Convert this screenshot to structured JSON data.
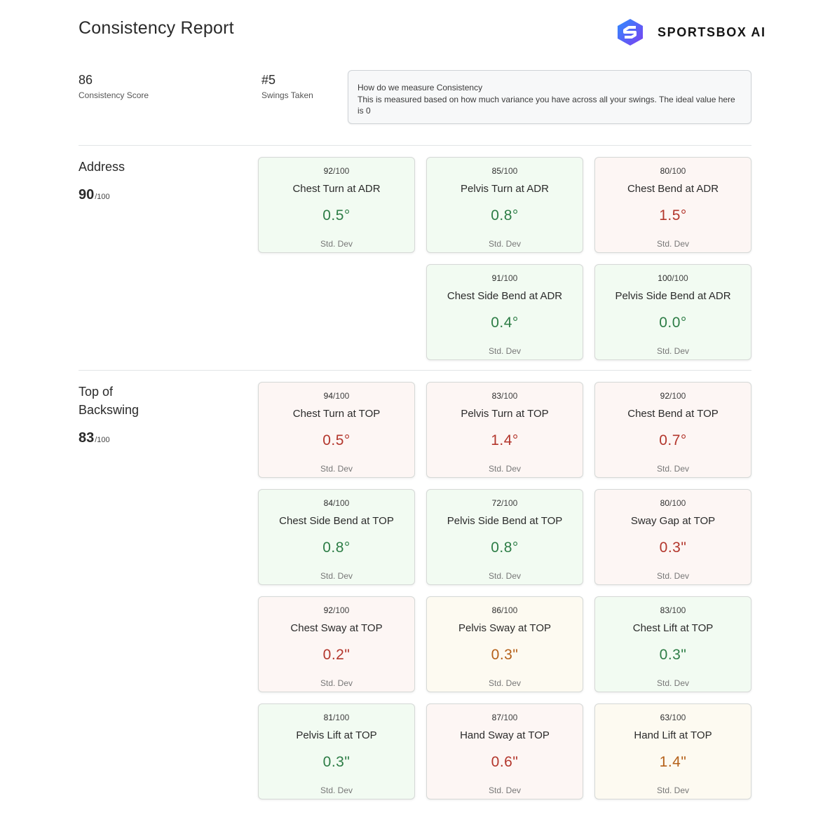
{
  "page_title": "Consistency Report",
  "brand": {
    "name": "SPORTSBOX AI",
    "logo_icon": "sportsbox-logo-icon"
  },
  "stats": {
    "consistency_score": {
      "value": "86",
      "label": "Consistency Score"
    },
    "swings_taken": {
      "value": "#5",
      "label": "Swings Taken"
    }
  },
  "info": {
    "title": "How do we measure Consistency",
    "body": "This is measured based on how much variance you have across all your swings. The ideal value here is 0"
  },
  "colors": {
    "good": "#2d7d46",
    "bad": "#b3362c",
    "warn": "#b5611a"
  },
  "sections": [
    {
      "title": "Address",
      "score": "90",
      "score_denominator": "/100",
      "metrics": [
        {
          "score": "92",
          "den": "/100",
          "name": "Chest Turn at ADR",
          "value": "0.5°",
          "label": "Std. Dev",
          "status": "green"
        },
        {
          "score": "85",
          "den": "/100",
          "name": "Pelvis Turn at ADR",
          "value": "0.8°",
          "label": "Std. Dev",
          "status": "green"
        },
        {
          "score": "80",
          "den": "/100",
          "name": "Chest Bend at ADR",
          "value": "1.5°",
          "label": "Std. Dev",
          "status": "red"
        },
        {
          "score": "91",
          "den": "/100",
          "name": "Chest Side Bend at ADR",
          "value": "0.4°",
          "label": "Std. Dev",
          "status": "green"
        },
        {
          "score": "100",
          "den": "/100",
          "name": "Pelvis Side Bend at ADR",
          "value": "0.0°",
          "label": "Std. Dev",
          "status": "green"
        }
      ]
    },
    {
      "title_line1": "Top of",
      "title_line2": "Backswing",
      "score": "83",
      "score_denominator": "/100",
      "metrics": [
        {
          "score": "94",
          "den": "/100",
          "name": "Chest Turn at TOP",
          "value": "0.5°",
          "label": "Std. Dev",
          "status": "red"
        },
        {
          "score": "83",
          "den": "/100",
          "name": "Pelvis Turn at TOP",
          "value": "1.4°",
          "label": "Std. Dev",
          "status": "red"
        },
        {
          "score": "92",
          "den": "/100",
          "name": "Chest Bend at TOP",
          "value": "0.7°",
          "label": "Std. Dev",
          "status": "red"
        },
        {
          "score": "84",
          "den": "/100",
          "name": "Chest Side Bend at TOP",
          "value": "0.8°",
          "label": "Std. Dev",
          "status": "green"
        },
        {
          "score": "72",
          "den": "/100",
          "name": "Pelvis Side Bend at TOP",
          "value": "0.8°",
          "label": "Std. Dev",
          "status": "green"
        },
        {
          "score": "80",
          "den": "/100",
          "name": "Sway Gap at TOP",
          "value": "0.3\"",
          "label": "Std. Dev",
          "status": "red"
        },
        {
          "score": "92",
          "den": "/100",
          "name": "Chest Sway at TOP",
          "value": "0.2\"",
          "label": "Std. Dev",
          "status": "red"
        },
        {
          "score": "86",
          "den": "/100",
          "name": "Pelvis Sway at TOP",
          "value": "0.3\"",
          "label": "Std. Dev",
          "status": "amber"
        },
        {
          "score": "83",
          "den": "/100",
          "name": "Chest Lift at TOP",
          "value": "0.3\"",
          "label": "Std. Dev",
          "status": "green"
        },
        {
          "score": "81",
          "den": "/100",
          "name": "Pelvis Lift at TOP",
          "value": "0.3\"",
          "label": "Std. Dev",
          "status": "green"
        },
        {
          "score": "87",
          "den": "/100",
          "name": "Hand Sway at TOP",
          "value": "0.6\"",
          "label": "Std. Dev",
          "status": "red"
        },
        {
          "score": "63",
          "den": "/100",
          "name": "Hand Lift at TOP",
          "value": "1.4\"",
          "label": "Std. Dev",
          "status": "amber"
        }
      ]
    }
  ]
}
